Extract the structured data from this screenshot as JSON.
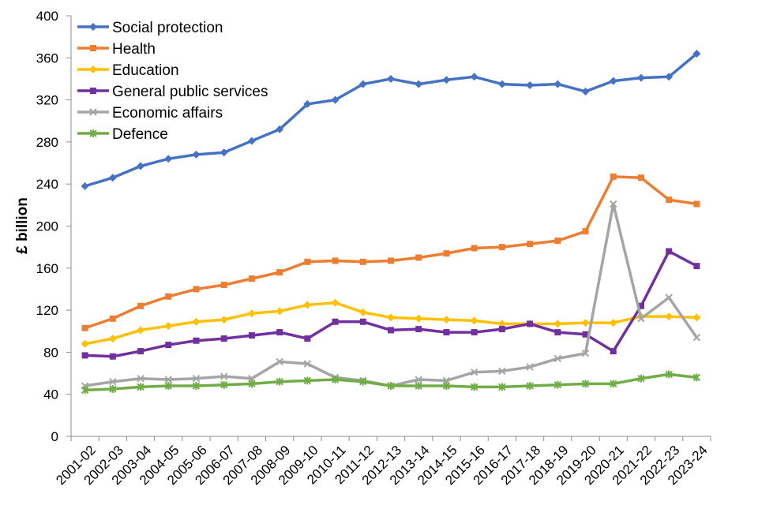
{
  "chart_data": {
    "type": "line",
    "title": "",
    "xlabel": "",
    "ylabel": "£ billion",
    "ylim": [
      0,
      400
    ],
    "yticks": [
      0,
      40,
      80,
      120,
      160,
      200,
      240,
      280,
      320,
      360,
      400
    ],
    "grid": false,
    "legend_position": "top-left",
    "categories": [
      "2001-02",
      "2002-03",
      "2003-04",
      "2004-05",
      "2005-06",
      "2006-07",
      "2007-08",
      "2008-09",
      "2009-10",
      "2010-11",
      "2011-12",
      "2012-13",
      "2013-14",
      "2014-15",
      "2015-16",
      "2016-17",
      "2017-18",
      "2018-19",
      "2019-20",
      "2020-21",
      "2021-22",
      "2022-23",
      "2023-24"
    ],
    "series": [
      {
        "name": "Social protection",
        "color": "#4472C4",
        "marker": "diamond",
        "values": [
          238,
          246,
          257,
          264,
          268,
          270,
          281,
          292,
          316,
          320,
          335,
          340,
          335,
          339,
          342,
          335,
          334,
          335,
          328,
          338,
          341,
          342,
          364
        ]
      },
      {
        "name": "Health",
        "color": "#ED7D31",
        "marker": "square",
        "values": [
          103,
          112,
          124,
          133,
          140,
          144,
          150,
          156,
          166,
          167,
          166,
          167,
          170,
          174,
          179,
          180,
          183,
          186,
          195,
          247,
          246,
          225,
          221
        ]
      },
      {
        "name": "Education",
        "color": "#FFC000",
        "marker": "diamond",
        "values": [
          88,
          93,
          101,
          105,
          109,
          111,
          117,
          119,
          125,
          127,
          118,
          113,
          112,
          111,
          110,
          107,
          107,
          107,
          108,
          108,
          114,
          114,
          113
        ]
      },
      {
        "name": "General public services",
        "color": "#7030A0",
        "marker": "square",
        "values": [
          77,
          76,
          81,
          87,
          91,
          93,
          96,
          99,
          93,
          109,
          109,
          101,
          102,
          99,
          99,
          102,
          107,
          99,
          97,
          81,
          124,
          176,
          162
        ]
      },
      {
        "name": "Economic affairs",
        "color": "#A5A5A5",
        "marker": "x",
        "values": [
          48,
          52,
          55,
          54,
          55,
          57,
          55,
          71,
          69,
          56,
          53,
          48,
          54,
          53,
          61,
          62,
          66,
          74,
          79,
          221,
          112,
          132,
          94
        ]
      },
      {
        "name": "Defence",
        "color": "#70AD47",
        "marker": "star",
        "values": [
          44,
          45,
          47,
          48,
          48,
          49,
          50,
          52,
          53,
          54,
          52,
          48,
          48,
          48,
          47,
          47,
          48,
          49,
          50,
          50,
          55,
          59,
          56
        ]
      }
    ]
  }
}
